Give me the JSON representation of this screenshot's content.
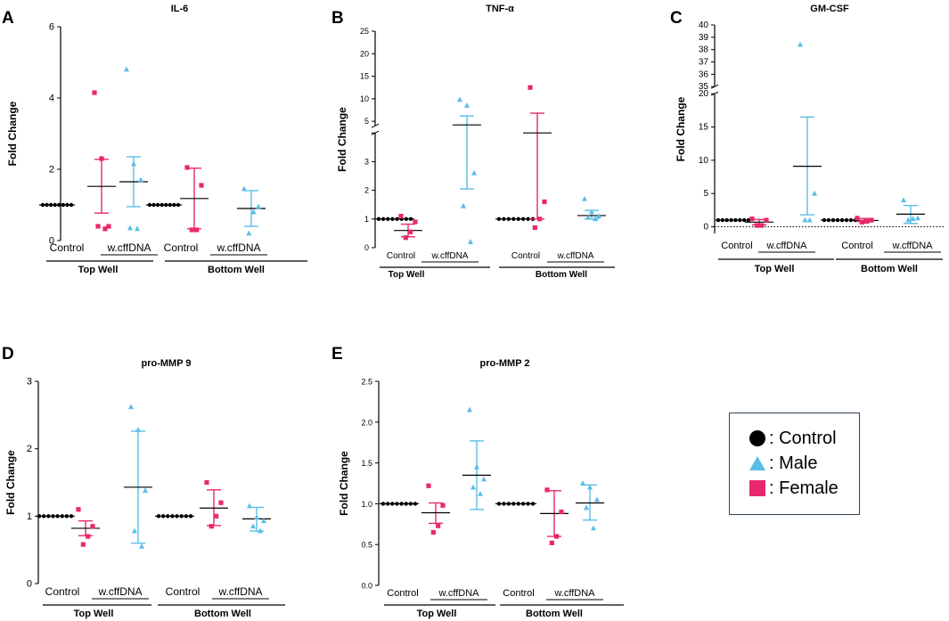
{
  "colors": {
    "control": "#000000",
    "male": "#5bbde6",
    "female": "#e8286e",
    "axis": "#000000"
  },
  "legend": {
    "control": ": Control",
    "male": ": Male",
    "female": ": Female"
  },
  "group_labels": {
    "control": "Control",
    "treatment": "w.cffDNA",
    "top": "Top Well",
    "bottom": "Bottom Well"
  },
  "chart_data": [
    {
      "id": "A",
      "type": "scatter",
      "title": "IL-6",
      "ylabel": "Fold Change",
      "ylim": [
        0,
        6
      ],
      "ticks": [
        0,
        2,
        4,
        6
      ],
      "tick_labels": [
        "0",
        "2",
        "4",
        "6"
      ],
      "groups": [
        {
          "name": "Top Well Control",
          "color": "control",
          "marker": "circle",
          "points": [
            1,
            1,
            1,
            1,
            1,
            1,
            1,
            1
          ],
          "mean": 1,
          "err": [
            1,
            1
          ]
        },
        {
          "name": "Top Well w.cffDNA Female",
          "color": "female",
          "marker": "square",
          "points": [
            4.15,
            2.3,
            0.4,
            0.4,
            0.33
          ],
          "mean": 1.52,
          "err": [
            0.77,
            2.28
          ]
        },
        {
          "name": "Top Well w.cffDNA Male",
          "color": "male",
          "marker": "triangle",
          "points": [
            4.8,
            2.15,
            1.7,
            0.35,
            0.33
          ],
          "mean": 1.65,
          "err": [
            0.95,
            2.35
          ]
        },
        {
          "name": "Bottom Well Control",
          "color": "control",
          "marker": "circle",
          "points": [
            1,
            1,
            1,
            1,
            1,
            1,
            1,
            1
          ],
          "mean": 1,
          "err": [
            1,
            1
          ]
        },
        {
          "name": "Bottom Well w.cffDNA Female",
          "color": "female",
          "marker": "square",
          "points": [
            2.05,
            1.55,
            0.3,
            0.3
          ],
          "mean": 1.18,
          "err": [
            0.33,
            2.03
          ]
        },
        {
          "name": "Bottom Well w.cffDNA Male",
          "color": "male",
          "marker": "triangle",
          "points": [
            1.45,
            0.95,
            0.8,
            0.2
          ],
          "mean": 0.9,
          "err": [
            0.4,
            1.4
          ]
        }
      ]
    },
    {
      "id": "B",
      "type": "scatter",
      "title": "TNF-α",
      "ylabel": "Fold Change",
      "broken_axis": true,
      "lower_ylim": [
        0,
        4
      ],
      "lower_ticks": [
        0,
        1,
        2,
        3,
        4
      ],
      "lower_tick_labels": [
        "0",
        "1",
        "2",
        "3",
        ""
      ],
      "upper_ylim": [
        4,
        25
      ],
      "upper_ticks": [
        5,
        10,
        15,
        20,
        25
      ],
      "upper_tick_labels": [
        "5",
        "10",
        "15",
        "20",
        "25"
      ],
      "groups": [
        {
          "name": "Top Well Control",
          "color": "control",
          "marker": "circle",
          "points": [
            1,
            1,
            1,
            1,
            1,
            1,
            1,
            1
          ],
          "mean": 1,
          "err": [
            1,
            1
          ]
        },
        {
          "name": "Top Well w.cffDNA Female",
          "color": "female",
          "marker": "square",
          "points": [
            1.1,
            0.9,
            0.55,
            0.35
          ],
          "mean": 0.6,
          "err": [
            0.38,
            0.82
          ]
        },
        {
          "name": "Top Well w.cffDNA Male",
          "color": "male",
          "marker": "triangle",
          "points": [
            9.8,
            8.5,
            2.6,
            1.45,
            0.2
          ],
          "mean": 4.2,
          "err": [
            2.05,
            6.2
          ]
        },
        {
          "name": "Bottom Well Control",
          "color": "control",
          "marker": "circle",
          "points": [
            1,
            1,
            1,
            1,
            1,
            1,
            1,
            1
          ],
          "mean": 1,
          "err": [
            1,
            1
          ]
        },
        {
          "name": "Bottom Well w.cffDNA Female",
          "color": "female",
          "marker": "square",
          "points": [
            12.5,
            1.6,
            1.0,
            0.7
          ],
          "mean": 4.0,
          "err": [
            1.0,
            6.8
          ]
        },
        {
          "name": "Bottom Well w.cffDNA Male",
          "color": "male",
          "marker": "triangle",
          "points": [
            1.7,
            1.25,
            1.1,
            1.05,
            1.0
          ],
          "mean": 1.12,
          "err": [
            1.0,
            1.3
          ]
        }
      ]
    },
    {
      "id": "C",
      "type": "scatter",
      "title": "GM-CSF",
      "ylabel": "Fold Change",
      "broken_axis": true,
      "dotted_zero": true,
      "lower_ylim": [
        -1,
        20
      ],
      "lower_ticks": [
        0,
        5,
        10,
        15,
        20
      ],
      "lower_tick_labels": [
        "0",
        "5",
        "10",
        "15",
        "20"
      ],
      "upper_ylim": [
        35,
        40
      ],
      "upper_ticks": [
        35,
        36,
        37,
        38,
        39,
        40
      ],
      "upper_tick_labels": [
        "35",
        "36",
        "37",
        "38",
        "39",
        "40"
      ],
      "groups": [
        {
          "name": "Top Well Control",
          "color": "control",
          "marker": "circle",
          "points": [
            1,
            1,
            1,
            1,
            1,
            1,
            1,
            1
          ],
          "mean": 1,
          "err": [
            1,
            1
          ]
        },
        {
          "name": "Top Well w.cffDNA Female",
          "color": "female",
          "marker": "square",
          "points": [
            1.2,
            1.0,
            0.2,
            0.2
          ],
          "mean": 0.7,
          "err": [
            0.3,
            1.1
          ]
        },
        {
          "name": "Top Well w.cffDNA Male",
          "color": "male",
          "marker": "triangle",
          "points": [
            38.4,
            5.0,
            1.0,
            1.0
          ],
          "mean": 9.1,
          "err": [
            1.8,
            16.5
          ]
        },
        {
          "name": "Bottom Well Control",
          "color": "control",
          "marker": "circle",
          "points": [
            1,
            1,
            1,
            1,
            1,
            1,
            1,
            1
          ],
          "mean": 1,
          "err": [
            1,
            1
          ]
        },
        {
          "name": "Bottom Well w.cffDNA Female",
          "color": "female",
          "marker": "square",
          "points": [
            1.3,
            1.0,
            0.8,
            0.7
          ],
          "mean": 0.95,
          "err": [
            0.75,
            1.25
          ]
        },
        {
          "name": "Bottom Well w.cffDNA Male",
          "color": "male",
          "marker": "triangle",
          "points": [
            4.0,
            1.3,
            1.2,
            1.0
          ],
          "mean": 1.9,
          "err": [
            0.5,
            3.2
          ]
        }
      ]
    },
    {
      "id": "D",
      "type": "scatter",
      "title": "pro-MMP 9",
      "ylabel": "Fold Change",
      "ylim": [
        0,
        3
      ],
      "ticks": [
        0,
        1,
        2,
        3
      ],
      "tick_labels": [
        "0",
        "1",
        "2",
        "3"
      ],
      "groups": [
        {
          "name": "Top Well Control",
          "color": "control",
          "marker": "circle",
          "points": [
            1,
            1,
            1,
            1,
            1,
            1,
            1,
            1
          ],
          "mean": 1,
          "err": [
            1,
            1
          ]
        },
        {
          "name": "Top Well w.cffDNA Female",
          "color": "female",
          "marker": "square",
          "points": [
            1.1,
            0.85,
            0.7,
            0.58
          ],
          "mean": 0.82,
          "err": [
            0.71,
            0.93
          ]
        },
        {
          "name": "Top Well w.cffDNA Male",
          "color": "male",
          "marker": "triangle",
          "points": [
            2.62,
            2.28,
            1.38,
            0.78,
            0.55
          ],
          "mean": 1.43,
          "err": [
            0.6,
            2.26
          ]
        },
        {
          "name": "Bottom Well Control",
          "color": "control",
          "marker": "circle",
          "points": [
            1,
            1,
            1,
            1,
            1,
            1,
            1,
            1
          ],
          "mean": 1,
          "err": [
            1,
            1
          ]
        },
        {
          "name": "Bottom Well w.cffDNA Female",
          "color": "female",
          "marker": "square",
          "points": [
            1.5,
            1.2,
            1.0,
            0.85
          ],
          "mean": 1.12,
          "err": [
            0.86,
            1.39
          ]
        },
        {
          "name": "Bottom Well w.cffDNA Male",
          "color": "male",
          "marker": "triangle",
          "points": [
            1.15,
            0.98,
            0.93,
            0.85,
            0.78
          ],
          "mean": 0.96,
          "err": [
            0.78,
            1.13
          ]
        }
      ]
    },
    {
      "id": "E",
      "type": "scatter",
      "title": "pro-MMP 2",
      "ylabel": "Fold Change",
      "ylim": [
        0,
        2.5
      ],
      "ticks": [
        0,
        0.5,
        1,
        1.5,
        2,
        2.5
      ],
      "tick_labels": [
        "0.0",
        "0.5",
        "1.0",
        "1.5",
        "2.0",
        "2.5"
      ],
      "groups": [
        {
          "name": "Top Well Control",
          "color": "control",
          "marker": "circle",
          "points": [
            1,
            1,
            1,
            1,
            1,
            1,
            1,
            1
          ],
          "mean": 1,
          "err": [
            1,
            1
          ]
        },
        {
          "name": "Top Well w.cffDNA Female",
          "color": "female",
          "marker": "square",
          "points": [
            1.22,
            0.98,
            0.73,
            0.65
          ],
          "mean": 0.89,
          "err": [
            0.76,
            1.01
          ]
        },
        {
          "name": "Top Well w.cffDNA Male",
          "color": "male",
          "marker": "triangle",
          "points": [
            2.15,
            1.45,
            1.3,
            1.2,
            1.12
          ],
          "mean": 1.35,
          "err": [
            0.93,
            1.77
          ]
        },
        {
          "name": "Bottom Well Control",
          "color": "control",
          "marker": "circle",
          "points": [
            1,
            1,
            1,
            1,
            1,
            1,
            1,
            1
          ],
          "mean": 1,
          "err": [
            1,
            1
          ]
        },
        {
          "name": "Bottom Well w.cffDNA Female",
          "color": "female",
          "marker": "square",
          "points": [
            1.17,
            0.9,
            0.6,
            0.52
          ],
          "mean": 0.88,
          "err": [
            0.6,
            1.16
          ]
        },
        {
          "name": "Bottom Well w.cffDNA Male",
          "color": "male",
          "marker": "triangle",
          "points": [
            1.25,
            1.2,
            1.05,
            0.95,
            0.7
          ],
          "mean": 1.01,
          "err": [
            0.8,
            1.23
          ]
        }
      ]
    }
  ]
}
